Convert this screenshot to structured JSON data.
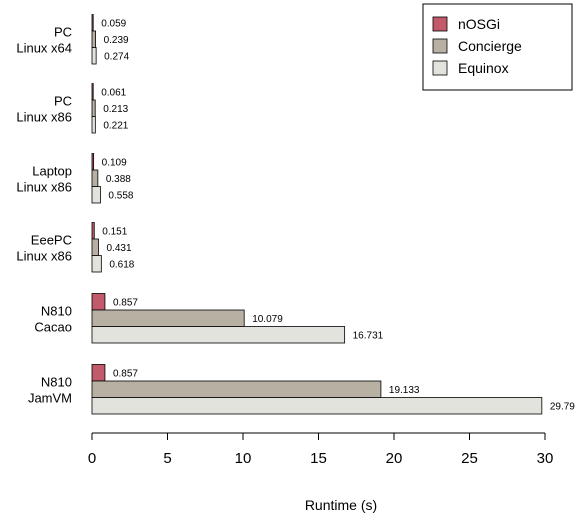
{
  "chart_data": {
    "type": "bar",
    "orientation": "horizontal",
    "categories": [
      [
        "PC",
        "Linux x64"
      ],
      [
        "PC",
        "Linux x86"
      ],
      [
        "Laptop",
        "Linux x86"
      ],
      [
        "EeePC",
        "Linux x86"
      ],
      [
        "N810",
        "Cacao"
      ],
      [
        "N810",
        "JamVM"
      ]
    ],
    "series": [
      {
        "name": "nOSGi",
        "color": "#c35a6c",
        "values": [
          0.059,
          0.061,
          0.109,
          0.151,
          0.857,
          0.857
        ],
        "labels": [
          "0.059",
          "0.061",
          "0.109",
          "0.151",
          "0.857",
          "0.857"
        ]
      },
      {
        "name": "Concierge",
        "color": "#b8b0a2",
        "values": [
          0.239,
          0.213,
          0.388,
          0.431,
          10.079,
          19.133
        ],
        "labels": [
          "0.239",
          "0.213",
          "0.388",
          "0.431",
          "10.079",
          "19.133"
        ]
      },
      {
        "name": "Equinox",
        "color": "#e3e3de",
        "values": [
          0.274,
          0.221,
          0.558,
          0.618,
          16.731,
          29.79
        ],
        "labels": [
          "0.274",
          "0.221",
          "0.558",
          "0.618",
          "16.731",
          "29.79"
        ]
      }
    ],
    "xlabel": "Runtime (s)",
    "ylabel": "",
    "xlim": [
      0,
      30
    ],
    "xticks": [
      0,
      5,
      10,
      15,
      20,
      25,
      30
    ],
    "grid": false,
    "legend_position": "top-right"
  }
}
